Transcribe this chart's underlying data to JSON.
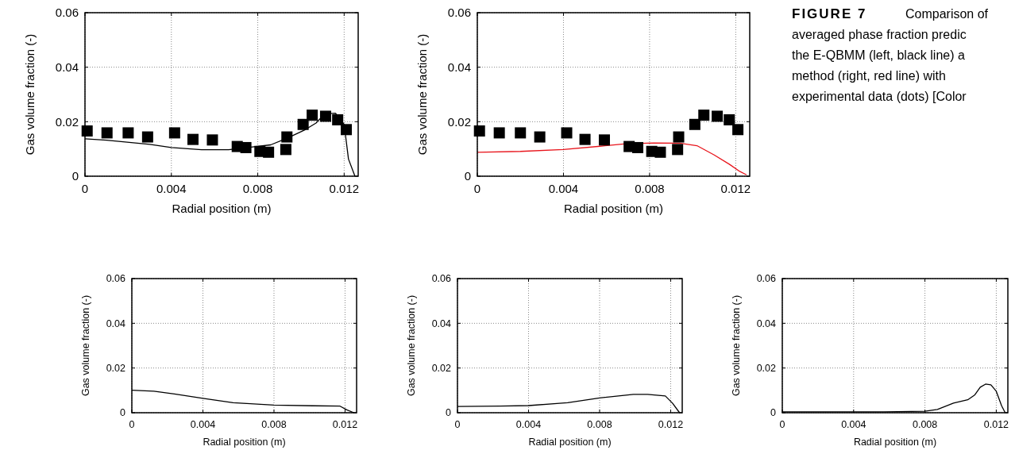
{
  "chart_data": [
    {
      "type": "line",
      "xlabel": "Radial position (m)",
      "ylabel": "Gas volume fraction (-)",
      "xlim": [
        0,
        0.01265
      ],
      "ylim": [
        0,
        0.06
      ],
      "xticks": [
        0,
        0.004,
        0.008,
        0.012
      ],
      "yticks": [
        0,
        0.02,
        0.04,
        0.06
      ],
      "grid": true,
      "series": [
        {
          "type": "line",
          "color": "#000000",
          "line_style": "solid",
          "x": [
            0,
            0.001,
            0.003,
            0.004,
            0.0054,
            0.00665,
            0.0076,
            0.0086,
            0.0094,
            0.0102,
            0.0107,
            0.0111,
            0.0116,
            0.012,
            0.0122,
            0.0125
          ],
          "values": [
            0.0137,
            0.0132,
            0.0117,
            0.0105,
            0.0097,
            0.0097,
            0.0106,
            0.0115,
            0.0141,
            0.0171,
            0.0195,
            0.0229,
            0.0231,
            0.019,
            0.0063,
            0
          ]
        },
        {
          "type": "scatter",
          "color": "#000000",
          "marker": "square",
          "x": [
            0.0001,
            0.00102,
            0.002,
            0.0029,
            0.00415,
            0.005,
            0.0059,
            0.00705,
            0.00745,
            0.0081,
            0.0085,
            0.0093,
            0.00935,
            0.0101,
            0.01052,
            0.01114,
            0.0117,
            0.0121
          ],
          "values": [
            0.0166,
            0.0159,
            0.0159,
            0.0144,
            0.0159,
            0.0135,
            0.0133,
            0.0109,
            0.0105,
            0.0091,
            0.0088,
            0.0098,
            0.0144,
            0.019,
            0.0224,
            0.022,
            0.0207,
            0.0171
          ]
        }
      ]
    },
    {
      "type": "line",
      "xlabel": "Radial position (m)",
      "ylabel": "Gas volume fraction (-)",
      "xlim": [
        0,
        0.01265
      ],
      "ylim": [
        0,
        0.06
      ],
      "xticks": [
        0,
        0.004,
        0.008,
        0.012
      ],
      "yticks": [
        0,
        0.02,
        0.04,
        0.06
      ],
      "grid": true,
      "series": [
        {
          "type": "line",
          "color": "#e8141b",
          "line_style": "solid",
          "x": [
            0,
            0.002,
            0.004,
            0.0057,
            0.0069,
            0.0082,
            0.0094,
            0.0102,
            0.011,
            0.0117,
            0.0122,
            0.0125
          ],
          "values": [
            0.0088,
            0.0091,
            0.0098,
            0.011,
            0.0119,
            0.0122,
            0.0121,
            0.0112,
            0.0078,
            0.0044,
            0.0017,
            0.0005
          ]
        },
        {
          "type": "scatter",
          "color": "#000000",
          "marker": "square",
          "x": [
            0.0001,
            0.00102,
            0.002,
            0.0029,
            0.00415,
            0.005,
            0.0059,
            0.00705,
            0.00745,
            0.0081,
            0.0085,
            0.0093,
            0.00935,
            0.0101,
            0.01052,
            0.01114,
            0.0117,
            0.0121
          ],
          "values": [
            0.0166,
            0.0159,
            0.0159,
            0.0144,
            0.0159,
            0.0135,
            0.0133,
            0.0109,
            0.0105,
            0.0091,
            0.0088,
            0.0098,
            0.0144,
            0.019,
            0.0224,
            0.022,
            0.0207,
            0.0171
          ]
        }
      ]
    },
    {
      "type": "other",
      "title": "FIGURE 7",
      "annotations": [
        "Comparison of",
        "averaged phase fraction predic",
        "the E-QBMM (left, black line) a",
        "method (right, red line) with",
        "experimental data (dots) [Color"
      ]
    },
    {
      "type": "line",
      "xlabel": "Radial position (m)",
      "ylabel": "Gas volume fraction (-)",
      "xlim": [
        0,
        0.01265
      ],
      "ylim": [
        0,
        0.06
      ],
      "xticks": [
        0,
        0.004,
        0.008,
        0.012
      ],
      "yticks": [
        0,
        0.02,
        0.04,
        0.06
      ],
      "grid": true,
      "series": [
        {
          "type": "line",
          "color": "#000000",
          "line_style": "solid",
          "x": [
            0,
            0.00124,
            0.0024,
            0.004,
            0.0057,
            0.008,
            0.0102,
            0.0117,
            0.0121,
            0.0125
          ],
          "values": [
            0.0101,
            0.0096,
            0.0084,
            0.0064,
            0.0045,
            0.0034,
            0.0031,
            0.003,
            0.0013,
            0
          ]
        }
      ]
    },
    {
      "type": "line",
      "xlabel": "Radial position (m)",
      "ylabel": "Gas volume fraction (-)",
      "xlim": [
        0,
        0.01265
      ],
      "ylim": [
        0,
        0.06
      ],
      "xticks": [
        0,
        0.004,
        0.008,
        0.012
      ],
      "yticks": [
        0,
        0.02,
        0.04,
        0.06
      ],
      "grid": true,
      "series": [
        {
          "type": "line",
          "color": "#000000",
          "line_style": "solid",
          "x": [
            0,
            0.0024,
            0.004,
            0.0062,
            0.008,
            0.0099,
            0.0107,
            0.0117,
            0.0121,
            0.0125
          ],
          "values": [
            0.0028,
            0.003,
            0.0032,
            0.0045,
            0.0066,
            0.0082,
            0.0082,
            0.0075,
            0.0043,
            0
          ]
        }
      ]
    },
    {
      "type": "line",
      "xlabel": "Radial position (m)",
      "ylabel": "Gas volume fraction (-)",
      "xlim": [
        0,
        0.01265
      ],
      "ylim": [
        0,
        0.06
      ],
      "xticks": [
        0,
        0.004,
        0.008,
        0.012
      ],
      "yticks": [
        0,
        0.02,
        0.04,
        0.06
      ],
      "grid": true,
      "series": [
        {
          "type": "line",
          "color": "#000000",
          "line_style": "solid",
          "x": [
            0,
            0.0057,
            0.008,
            0.0087,
            0.0096,
            0.0104,
            0.0108,
            0.0111,
            0.0114,
            0.0117,
            0.012,
            0.0123,
            0.0125
          ],
          "values": [
            0.0004,
            0.0004,
            0.0007,
            0.0015,
            0.0043,
            0.0058,
            0.008,
            0.0114,
            0.0128,
            0.0125,
            0.0096,
            0.0031,
            0
          ]
        }
      ]
    }
  ]
}
